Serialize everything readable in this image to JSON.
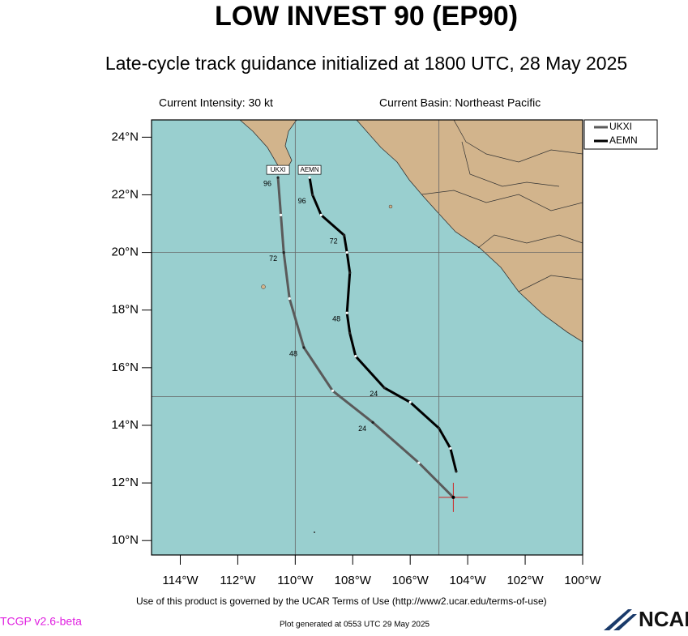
{
  "chart_data": {
    "type": "track-map",
    "title": "LOW INVEST 90 (EP90)",
    "subtitle": "Late-cycle track guidance initialized at 1800 UTC, 28 May 2025",
    "intensity": "Current Intensity: 30 kt",
    "basin": "Current Basin: Northeast Pacific",
    "xlim": [
      -115,
      -100
    ],
    "ylim": [
      9.5,
      24.6
    ],
    "xticks": [
      {
        "value": -114,
        "label": "114°W"
      },
      {
        "value": -112,
        "label": "112°W"
      },
      {
        "value": -110,
        "label": "110°W"
      },
      {
        "value": -108,
        "label": "108°W"
      },
      {
        "value": -106,
        "label": "106°W"
      },
      {
        "value": -104,
        "label": "104°W"
      },
      {
        "value": -102,
        "label": "102°W"
      },
      {
        "value": -100,
        "label": "100°W"
      }
    ],
    "yticks": [
      {
        "value": 10,
        "label": "10°N"
      },
      {
        "value": 12,
        "label": "12°N"
      },
      {
        "value": 14,
        "label": "14°N"
      },
      {
        "value": 16,
        "label": "16°N"
      },
      {
        "value": 18,
        "label": "18°N"
      },
      {
        "value": 20,
        "label": "20°N"
      },
      {
        "value": 22,
        "label": "22°N"
      },
      {
        "value": 24,
        "label": "24°N"
      }
    ],
    "grid_lon": [
      -110,
      -105
    ],
    "grid_lat": [
      15,
      20
    ],
    "current_position": {
      "lon": -104.5,
      "lat": 11.5,
      "color": "#d02020"
    },
    "series": [
      {
        "name": "UKXI",
        "color": "#5a5a5a",
        "x": [
          -104.5,
          -105.7,
          -107.3,
          -108.7,
          -109.7,
          -110.2,
          -110.4,
          -110.5,
          -110.6
        ],
        "values": [
          11.5,
          12.7,
          14.1,
          15.2,
          16.7,
          18.4,
          20.0,
          21.3,
          22.6
        ],
        "point_labels": [
          null,
          null,
          "24",
          null,
          "48",
          null,
          "72",
          null,
          "96"
        ]
      },
      {
        "name": "AEMN",
        "color": "#000000",
        "x": [
          -104.4,
          -104.6,
          -105.0,
          -106.0,
          -106.9,
          -107.9,
          -108.1,
          -108.2,
          -108.1,
          -108.2,
          -108.3,
          -109.1,
          -109.4,
          -109.5
        ],
        "values": [
          12.4,
          13.2,
          13.9,
          14.8,
          15.3,
          16.4,
          17.2,
          17.9,
          19.3,
          20.0,
          20.6,
          21.3,
          22.0,
          22.6
        ],
        "point_labels": [
          null,
          null,
          null,
          null,
          "24",
          null,
          null,
          "48",
          null,
          null,
          "72",
          null,
          "96",
          null
        ]
      }
    ],
    "terms": "Use of this product is governed by the UCAR Terms of Use (http://www2.ucar.edu/terms-of-use)",
    "version": "TCGP v2.6-beta",
    "generated": "Plot generated at 0553 UTC   29 May 2025",
    "logo": "NCAR"
  }
}
